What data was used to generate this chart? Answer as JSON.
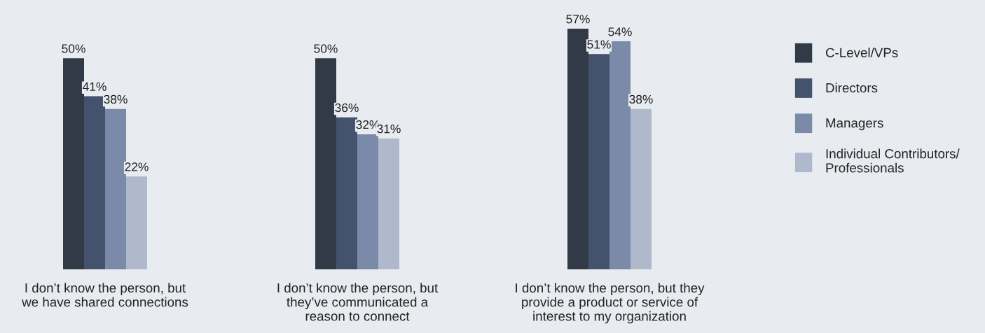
{
  "chart_data": {
    "type": "bar",
    "categories": [
      "I don’t know the person, but\nwe have shared connections",
      "I don’t know the person, but\nthey’ve communicated a\nreason to connect",
      "I don’t know the person, but they\nprovide a product or service of\ninterest to my organization"
    ],
    "series": [
      {
        "name": "C-Level/VPs",
        "color": "#323a48",
        "values": [
          50,
          50,
          57
        ],
        "value_labels": [
          "50%",
          "50%",
          "57%"
        ]
      },
      {
        "name": "Directors",
        "color": "#44526e",
        "values": [
          41,
          36,
          51
        ],
        "value_labels": [
          "41%",
          "36%",
          "51%"
        ]
      },
      {
        "name": "Managers",
        "color": "#7a8aa8",
        "values": [
          38,
          32,
          54
        ],
        "value_labels": [
          "38%",
          "32%",
          "54%"
        ]
      },
      {
        "name": "Individual Contributors/\nProfessionals",
        "color": "#b0b8cc",
        "values": [
          22,
          31,
          38
        ],
        "value_labels": [
          "22%",
          "31%",
          "38%"
        ]
      }
    ],
    "legend": "right"
  }
}
